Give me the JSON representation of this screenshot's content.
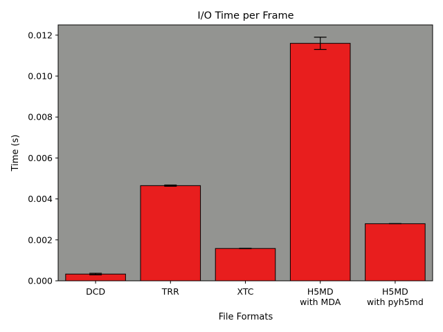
{
  "chart_data": {
    "type": "bar",
    "title": "I/O Time per Frame",
    "xlabel": "File Formats",
    "ylabel": "Time (s)",
    "categories": [
      [
        "DCD"
      ],
      [
        "TRR"
      ],
      [
        "XTC"
      ],
      [
        "H5MD",
        "with MDA"
      ],
      [
        "H5MD",
        "with pyh5md"
      ]
    ],
    "values": [
      0.00033,
      0.00465,
      0.00158,
      0.0116,
      0.00279
    ],
    "errors": [
      4e-05,
      3e-05,
      1e-05,
      0.0003,
      5e-06
    ],
    "ylim": [
      0,
      0.0125
    ],
    "yticks": [
      0.0,
      0.002,
      0.004,
      0.006,
      0.008,
      0.01,
      0.012
    ],
    "ytick_labels": [
      "0.000",
      "0.002",
      "0.004",
      "0.006",
      "0.008",
      "0.010",
      "0.012"
    ],
    "grid": false,
    "legend": "none",
    "colors": {
      "bar": "#e81e1e",
      "bar_edge": "#000000",
      "plot_background": "#939491",
      "error_bar": "#000000"
    }
  }
}
